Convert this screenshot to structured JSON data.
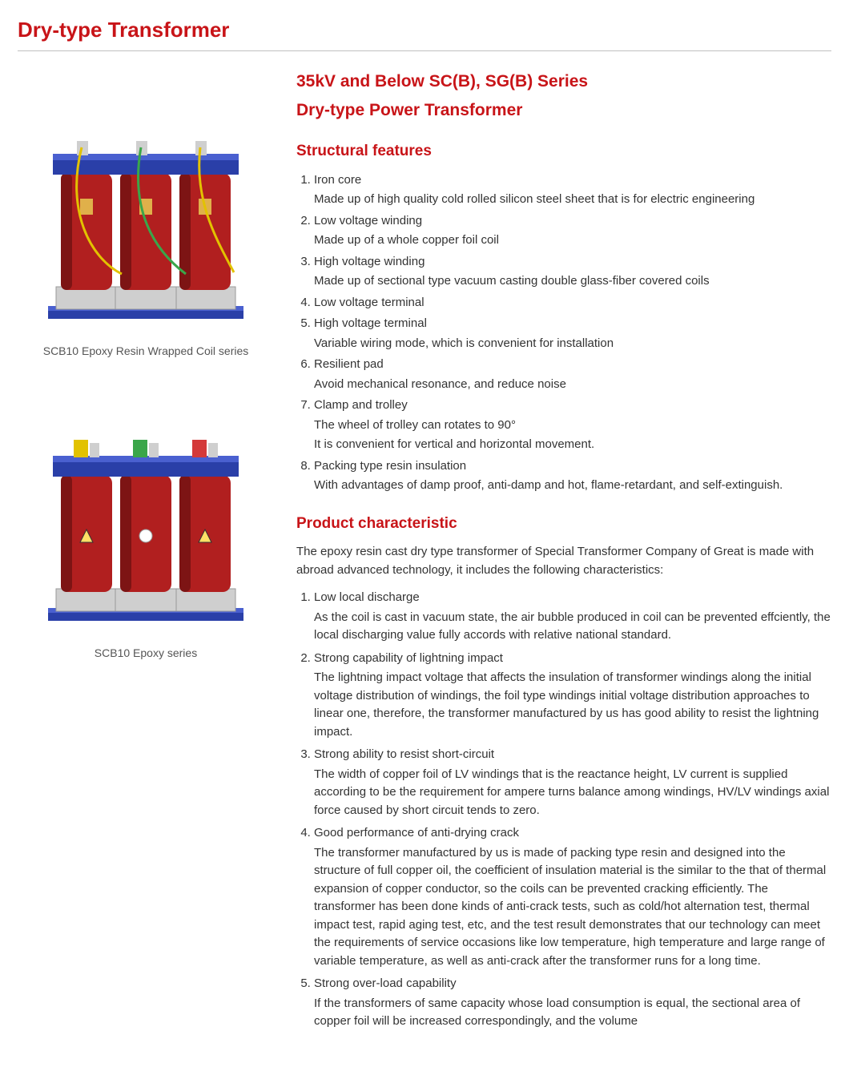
{
  "colors": {
    "accent_red": "#c81418",
    "text": "#333333",
    "rule": "#bfbfbf",
    "caption": "#555555",
    "coil_red": "#b11f1f",
    "coil_shadow": "#7d1414",
    "frame_blue": "#2a3fa8",
    "frame_blue_light": "#4a60d0",
    "base_grey": "#cfcfcf",
    "base_grey_dark": "#9a9a9a",
    "wire_yellow": "#e2c200",
    "wire_green": "#3aa64a",
    "wire_red": "#d43a3a",
    "label_yellow": "#ffe066"
  },
  "page": {
    "title": "Dry-type Transformer"
  },
  "figures": [
    {
      "caption": "SCB10 Epoxy Resin Wrapped Coil series"
    },
    {
      "caption": "SCB10 Epoxy series"
    }
  ],
  "product": {
    "title_line1": "35kV and Below SC(B), SG(B) Series",
    "title_line2": "Dry-type Power Transformer"
  },
  "structural": {
    "heading": "Structural features",
    "items": [
      {
        "title": "Iron core",
        "body": "Made up of high quality cold rolled silicon steel sheet that is for electric engineering"
      },
      {
        "title": "Low voltage winding",
        "body": "Made up of a whole copper foil coil"
      },
      {
        "title": "High voltage winding",
        "body": "Made up of sectional type vacuum casting double glass-fiber covered coils"
      },
      {
        "title": "Low voltage terminal",
        "body": ""
      },
      {
        "title": "High voltage terminal",
        "body": "Variable wiring mode, which is convenient for installation"
      },
      {
        "title": "Resilient pad",
        "body": "Avoid mechanical resonance, and reduce noise"
      },
      {
        "title": "Clamp and trolley",
        "body": "The wheel of trolley can rotates to 90°\nIt is convenient for vertical and horizontal movement."
      },
      {
        "title": "Packing type resin insulation",
        "body": "With advantages of damp proof, anti-damp and hot, flame-retardant, and self-extinguish."
      }
    ]
  },
  "characteristic": {
    "heading": "Product characteristic",
    "intro": "The epoxy resin cast dry type transformer of Special Transformer Company of Great is made with abroad advanced technology, it includes the following characteristics:",
    "items": [
      {
        "title": "Low local discharge",
        "body": "As the coil is cast in vacuum state, the air bubble produced in coil can be prevented effciently, the local discharging value fully accords with relative national standard."
      },
      {
        "title": "Strong capability of lightning impact",
        "body": "The lightning impact voltage that affects the insulation of transformer windings along the initial voltage distribution of windings, the foil type windings initial voltage distribution approaches to linear one, therefore, the transformer manufactured by us has good ability to resist the lightning impact."
      },
      {
        "title": "Strong ability to resist short-circuit",
        "body": "The width of copper foil of LV windings that is the reactance height, LV current is supplied according to be the requirement for ampere turns balance among windings, HV/LV windings axial force caused by short circuit tends to zero."
      },
      {
        "title": "Good performance of anti-drying crack",
        "body": "The transformer manufactured by us is made of packing type resin and designed into the structure of full copper oil, the coefficient of insulation material is the similar to the that of thermal expansion of copper conductor, so the coils can be prevented cracking efficiently. The transformer has been done kinds of anti-crack tests, such as cold/hot alternation test, thermal impact test, rapid aging test, etc, and the test result demonstrates that our technology can meet the requirements of service occasions like low temperature, high temperature and large range of variable temperature, as well as anti-crack after the transformer runs for a long time."
      },
      {
        "title": "Strong over-load capability",
        "body": "If the transformers of same capacity whose load consumption is equal, the sectional area of copper foil will be increased correspondingly, and the volume"
      }
    ]
  }
}
